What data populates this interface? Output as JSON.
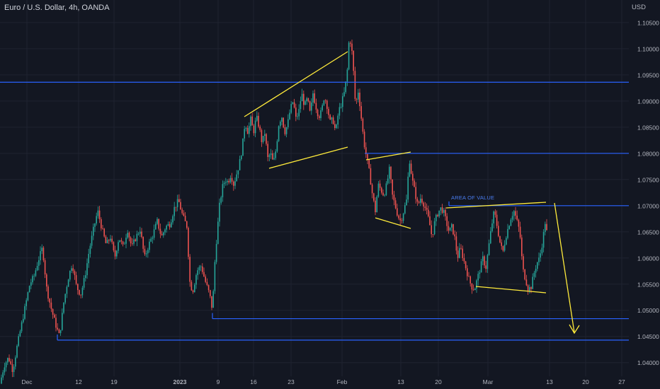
{
  "title": "Euro / U.S. Dollar, 4h, OANDA",
  "currency_label": "USD",
  "chart_data": {
    "type": "candlestick",
    "symbol": "EUR/USD",
    "timeframe": "4h",
    "ylim": [
      1.0355,
      1.1085
    ],
    "yticks": [
      "1.04000",
      "1.04500",
      "1.05000",
      "1.05500",
      "1.06000",
      "1.06500",
      "1.07000",
      "1.07500",
      "1.08000",
      "1.08500",
      "1.09000",
      "1.09500",
      "1.10000",
      "1.10500"
    ],
    "xticks": [
      "Dec",
      "12",
      "19",
      "2023",
      "9",
      "16",
      "23",
      "Feb",
      "13",
      "20",
      "Mar",
      "13",
      "20",
      "27"
    ],
    "price_path": [
      [
        0,
        1.036
      ],
      [
        6,
        1.0395
      ],
      [
        12,
        1.041
      ],
      [
        18,
        1.0385
      ],
      [
        24,
        1.043
      ],
      [
        30,
        1.047
      ],
      [
        36,
        1.051
      ],
      [
        42,
        1.055
      ],
      [
        48,
        1.0565
      ],
      [
        54,
        1.0595
      ],
      [
        60,
        1.062
      ],
      [
        66,
        1.054
      ],
      [
        72,
        1.0505
      ],
      [
        78,
        1.0475
      ],
      [
        84,
        1.045
      ],
      [
        90,
        1.0515
      ],
      [
        96,
        1.056
      ],
      [
        102,
        1.059
      ],
      [
        108,
        1.0545
      ],
      [
        114,
        1.053
      ],
      [
        120,
        1.0565
      ],
      [
        126,
        1.0615
      ],
      [
        132,
        1.0655
      ],
      [
        138,
        1.069
      ],
      [
        144,
        1.0655
      ],
      [
        150,
        1.0625
      ],
      [
        156,
        1.064
      ],
      [
        162,
        1.06
      ],
      [
        168,
        1.064
      ],
      [
        174,
        1.062
      ],
      [
        180,
        1.0655
      ],
      [
        186,
        1.062
      ],
      [
        192,
        1.064
      ],
      [
        198,
        1.0655
      ],
      [
        204,
        1.06
      ],
      [
        210,
        1.0625
      ],
      [
        216,
        1.0645
      ],
      [
        222,
        1.067
      ],
      [
        228,
        1.064
      ],
      [
        234,
        1.066
      ],
      [
        240,
        1.0665
      ],
      [
        246,
        1.0695
      ],
      [
        252,
        1.071
      ],
      [
        258,
        1.068
      ],
      [
        264,
        1.066
      ],
      [
        268,
        1.0555
      ],
      [
        272,
        1.0535
      ],
      [
        278,
        1.0575
      ],
      [
        284,
        1.0585
      ],
      [
        290,
        1.0555
      ],
      [
        296,
        1.053
      ],
      [
        300,
        1.05
      ],
      [
        303,
        1.0585
      ],
      [
        306,
        1.064
      ],
      [
        310,
        1.07
      ],
      [
        314,
        1.0735
      ],
      [
        318,
        1.075
      ],
      [
        322,
        1.0745
      ],
      [
        326,
        1.076
      ],
      [
        330,
        1.074
      ],
      [
        334,
        1.076
      ],
      [
        338,
        1.078
      ],
      [
        342,
        1.081
      ],
      [
        346,
        1.086
      ],
      [
        350,
        1.084
      ],
      [
        354,
        1.0865
      ],
      [
        358,
        1.084
      ],
      [
        362,
        1.087
      ],
      [
        366,
        1.085
      ],
      [
        370,
        1.082
      ],
      [
        374,
        1.084
      ],
      [
        378,
        1.079
      ],
      [
        382,
        1.08
      ],
      [
        386,
        1.078
      ],
      [
        390,
        1.081
      ],
      [
        394,
        1.086
      ],
      [
        398,
        1.087
      ],
      [
        402,
        1.084
      ],
      [
        406,
        1.0855
      ],
      [
        410,
        1.0885
      ],
      [
        414,
        1.09
      ],
      [
        418,
        1.0865
      ],
      [
        422,
        1.088
      ],
      [
        426,
        1.0915
      ],
      [
        430,
        1.089
      ],
      [
        434,
        1.0905
      ],
      [
        438,
        1.0875
      ],
      [
        442,
        1.0915
      ],
      [
        446,
        1.089
      ],
      [
        450,
        1.087
      ],
      [
        454,
        1.088
      ],
      [
        458,
        1.091
      ],
      [
        462,
        1.089
      ],
      [
        466,
        1.086
      ],
      [
        470,
        1.0865
      ],
      [
        474,
        1.084
      ],
      [
        478,
        1.088
      ],
      [
        482,
        1.0895
      ],
      [
        486,
        1.0915
      ],
      [
        490,
        1.095
      ],
      [
        493,
        1.102
      ],
      [
        496,
        1.101
      ],
      [
        499,
        1.096
      ],
      [
        502,
        1.089
      ],
      [
        506,
        1.092
      ],
      [
        510,
        1.087
      ],
      [
        514,
        1.082
      ],
      [
        518,
        1.079
      ],
      [
        522,
        1.076
      ],
      [
        526,
        1.072
      ],
      [
        530,
        1.069
      ],
      [
        534,
        1.074
      ],
      [
        538,
        1.073
      ],
      [
        542,
        1.072
      ],
      [
        546,
        1.074
      ],
      [
        550,
        1.077
      ],
      [
        554,
        1.072
      ],
      [
        558,
        1.07
      ],
      [
        562,
        1.068
      ],
      [
        566,
        1.067
      ],
      [
        570,
        1.069
      ],
      [
        574,
        1.071
      ],
      [
        578,
        1.079
      ],
      [
        582,
        1.075
      ],
      [
        586,
        1.0725
      ],
      [
        590,
        1.07
      ],
      [
        594,
        1.0715
      ],
      [
        598,
        1.0705
      ],
      [
        602,
        1.069
      ],
      [
        606,
        1.067
      ],
      [
        610,
        1.064
      ],
      [
        614,
        1.067
      ],
      [
        618,
        1.0685
      ],
      [
        622,
        1.0695
      ],
      [
        626,
        1.069
      ],
      [
        630,
        1.067
      ],
      [
        634,
        1.065
      ],
      [
        638,
        1.066
      ],
      [
        642,
        1.064
      ],
      [
        646,
        1.06
      ],
      [
        650,
        1.062
      ],
      [
        654,
        1.06
      ],
      [
        658,
        1.058
      ],
      [
        662,
        1.056
      ],
      [
        666,
        1.0545
      ],
      [
        670,
        1.054
      ],
      [
        674,
        1.056
      ],
      [
        678,
        1.058
      ],
      [
        682,
        1.06
      ],
      [
        686,
        1.058
      ],
      [
        690,
        1.062
      ],
      [
        694,
        1.066
      ],
      [
        698,
        1.069
      ],
      [
        702,
        1.066
      ],
      [
        706,
        1.063
      ],
      [
        710,
        1.061
      ],
      [
        714,
        1.064
      ],
      [
        718,
        1.066
      ],
      [
        722,
        1.068
      ],
      [
        726,
        1.069
      ],
      [
        730,
        1.067
      ],
      [
        734,
        1.065
      ],
      [
        738,
        1.058
      ],
      [
        742,
        1.056
      ],
      [
        746,
        1.054
      ],
      [
        750,
        1.0545
      ],
      [
        754,
        1.057
      ],
      [
        758,
        1.059
      ],
      [
        762,
        1.06
      ],
      [
        766,
        1.063
      ],
      [
        770,
        1.067
      ],
      [
        773,
        1.064
      ]
    ],
    "horizontal_levels": [
      1.0936,
      1.08,
      1.07,
      1.0484,
      1.0443
    ],
    "annotations": [
      "AREA OF VALUE"
    ]
  },
  "colors": {
    "background": "#131722",
    "grid": "#1f2330",
    "up_candle": "#26a69a",
    "down_candle": "#ef5350",
    "level_line": "#2962ff",
    "pattern_line": "#ffeb3b",
    "axis_text": "#b2b5be"
  }
}
